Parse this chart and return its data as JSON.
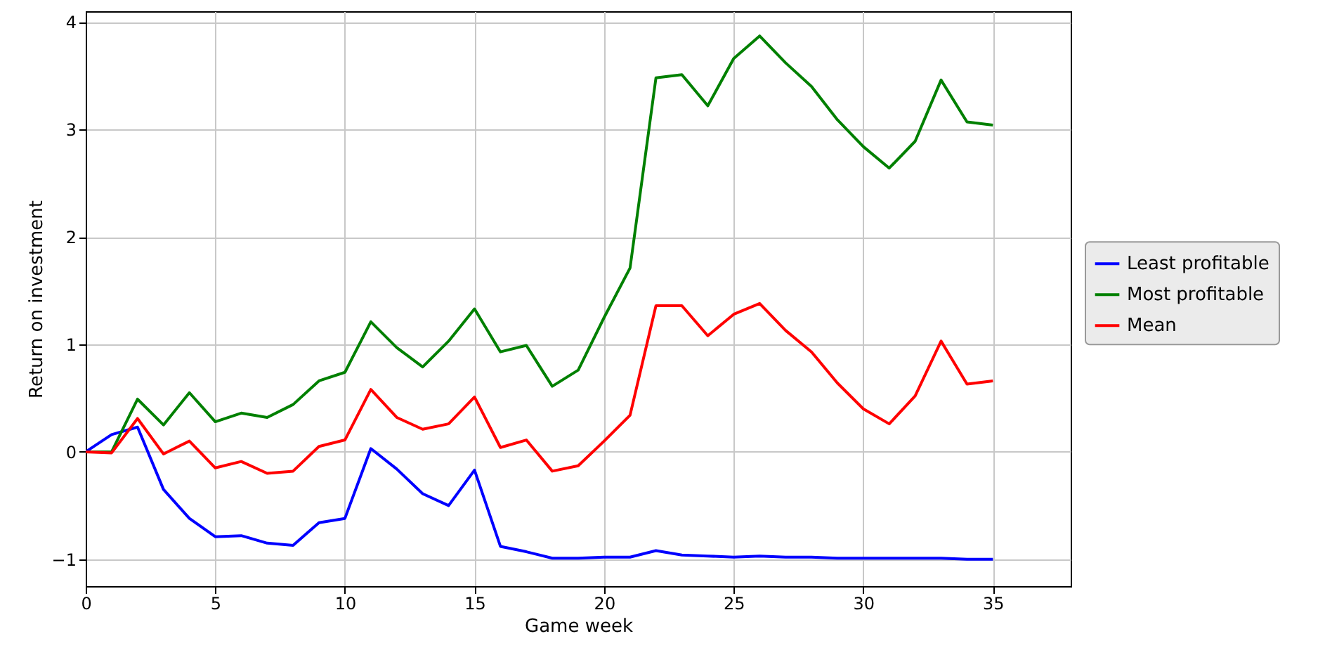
{
  "chart_data": {
    "type": "line",
    "xlabel": "Game week",
    "ylabel": "Return on investment",
    "x": [
      0,
      1,
      2,
      3,
      4,
      5,
      6,
      7,
      8,
      9,
      10,
      11,
      12,
      13,
      14,
      15,
      16,
      17,
      18,
      19,
      20,
      21,
      22,
      23,
      24,
      25,
      26,
      27,
      28,
      29,
      30,
      31,
      32,
      33,
      34,
      35
    ],
    "series": [
      {
        "name": "Least profitable",
        "color": "#0000ff",
        "values": [
          0,
          0.16,
          0.23,
          -0.35,
          -0.62,
          -0.79,
          -0.78,
          -0.85,
          -0.87,
          -0.66,
          -0.62,
          0.03,
          -0.16,
          -0.39,
          -0.5,
          -0.17,
          -0.88,
          -0.93,
          -0.99,
          -0.99,
          -0.98,
          -0.98,
          -0.92,
          -0.96,
          -0.97,
          -0.98,
          -0.97,
          -0.98,
          -0.98,
          -0.99,
          -0.99,
          -0.99,
          -0.99,
          -0.99,
          -1.0,
          -1.0
        ]
      },
      {
        "name": "Most profitable",
        "color": "#008000",
        "values": [
          0,
          0.0,
          0.49,
          0.25,
          0.55,
          0.28,
          0.36,
          0.32,
          0.44,
          0.66,
          0.74,
          1.21,
          0.97,
          0.79,
          1.03,
          1.33,
          0.93,
          0.99,
          0.61,
          0.76,
          1.25,
          1.71,
          3.48,
          3.51,
          3.22,
          3.66,
          3.87,
          3.62,
          3.4,
          3.09,
          2.84,
          2.64,
          2.89,
          3.46,
          3.07,
          3.04
        ]
      },
      {
        "name": "Mean",
        "color": "#ff0000",
        "values": [
          0,
          -0.01,
          0.31,
          -0.02,
          0.1,
          -0.15,
          -0.09,
          -0.2,
          -0.18,
          0.05,
          0.11,
          0.58,
          0.32,
          0.21,
          0.26,
          0.51,
          0.04,
          0.11,
          -0.18,
          -0.13,
          0.1,
          0.34,
          1.36,
          1.36,
          1.08,
          1.28,
          1.38,
          1.13,
          0.93,
          0.64,
          0.4,
          0.26,
          0.52,
          1.03,
          0.63,
          0.66
        ]
      }
    ],
    "xlim": [
      0,
      38
    ],
    "xticks": [
      0,
      5,
      10,
      15,
      20,
      25,
      30,
      35
    ],
    "ylim": [
      -1.25,
      4.1
    ],
    "yticks": [
      -1,
      0,
      1,
      2,
      3,
      4
    ],
    "grid": true,
    "legend": "right",
    "marker": "none",
    "line_style": "solid"
  }
}
